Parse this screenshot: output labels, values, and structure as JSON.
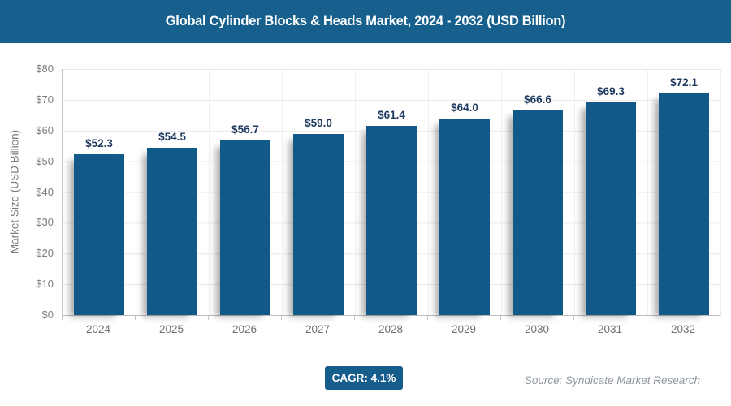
{
  "header": {
    "title": "Global Cylinder Blocks & Heads Market, 2024 - 2032 (USD Billion)",
    "background_color": "#17608d"
  },
  "chart_data": {
    "type": "bar",
    "title": "Global Cylinder Blocks & Heads Market, 2024 - 2032 (USD Billion)",
    "categories": [
      "2024",
      "2025",
      "2026",
      "2027",
      "2028",
      "2029",
      "2030",
      "2031",
      "2032"
    ],
    "values": [
      52.3,
      54.5,
      56.7,
      59.0,
      61.4,
      64.0,
      66.6,
      69.3,
      72.1
    ],
    "value_labels": [
      "$52.3",
      "$54.5",
      "$56.7",
      "$59.0",
      "$61.4",
      "$64.0",
      "$66.6",
      "$69.3",
      "$72.1"
    ],
    "xlabel": "",
    "ylabel": "Market Size (USD Billion)",
    "ylim": [
      0,
      80
    ],
    "yticks_top_down": [
      "$80",
      "$70",
      "$60",
      "$50",
      "$40",
      "$30",
      "$20",
      "$10",
      "$0"
    ],
    "grid": true,
    "legend": "none",
    "bar_color": "#115a88",
    "value_label_color": "#1f3a5f"
  },
  "footer": {
    "cagr_label": "CAGR: 4.1%",
    "cagr_badge_color": "#155d8a",
    "source": "Source: Syndicate Market Research"
  }
}
